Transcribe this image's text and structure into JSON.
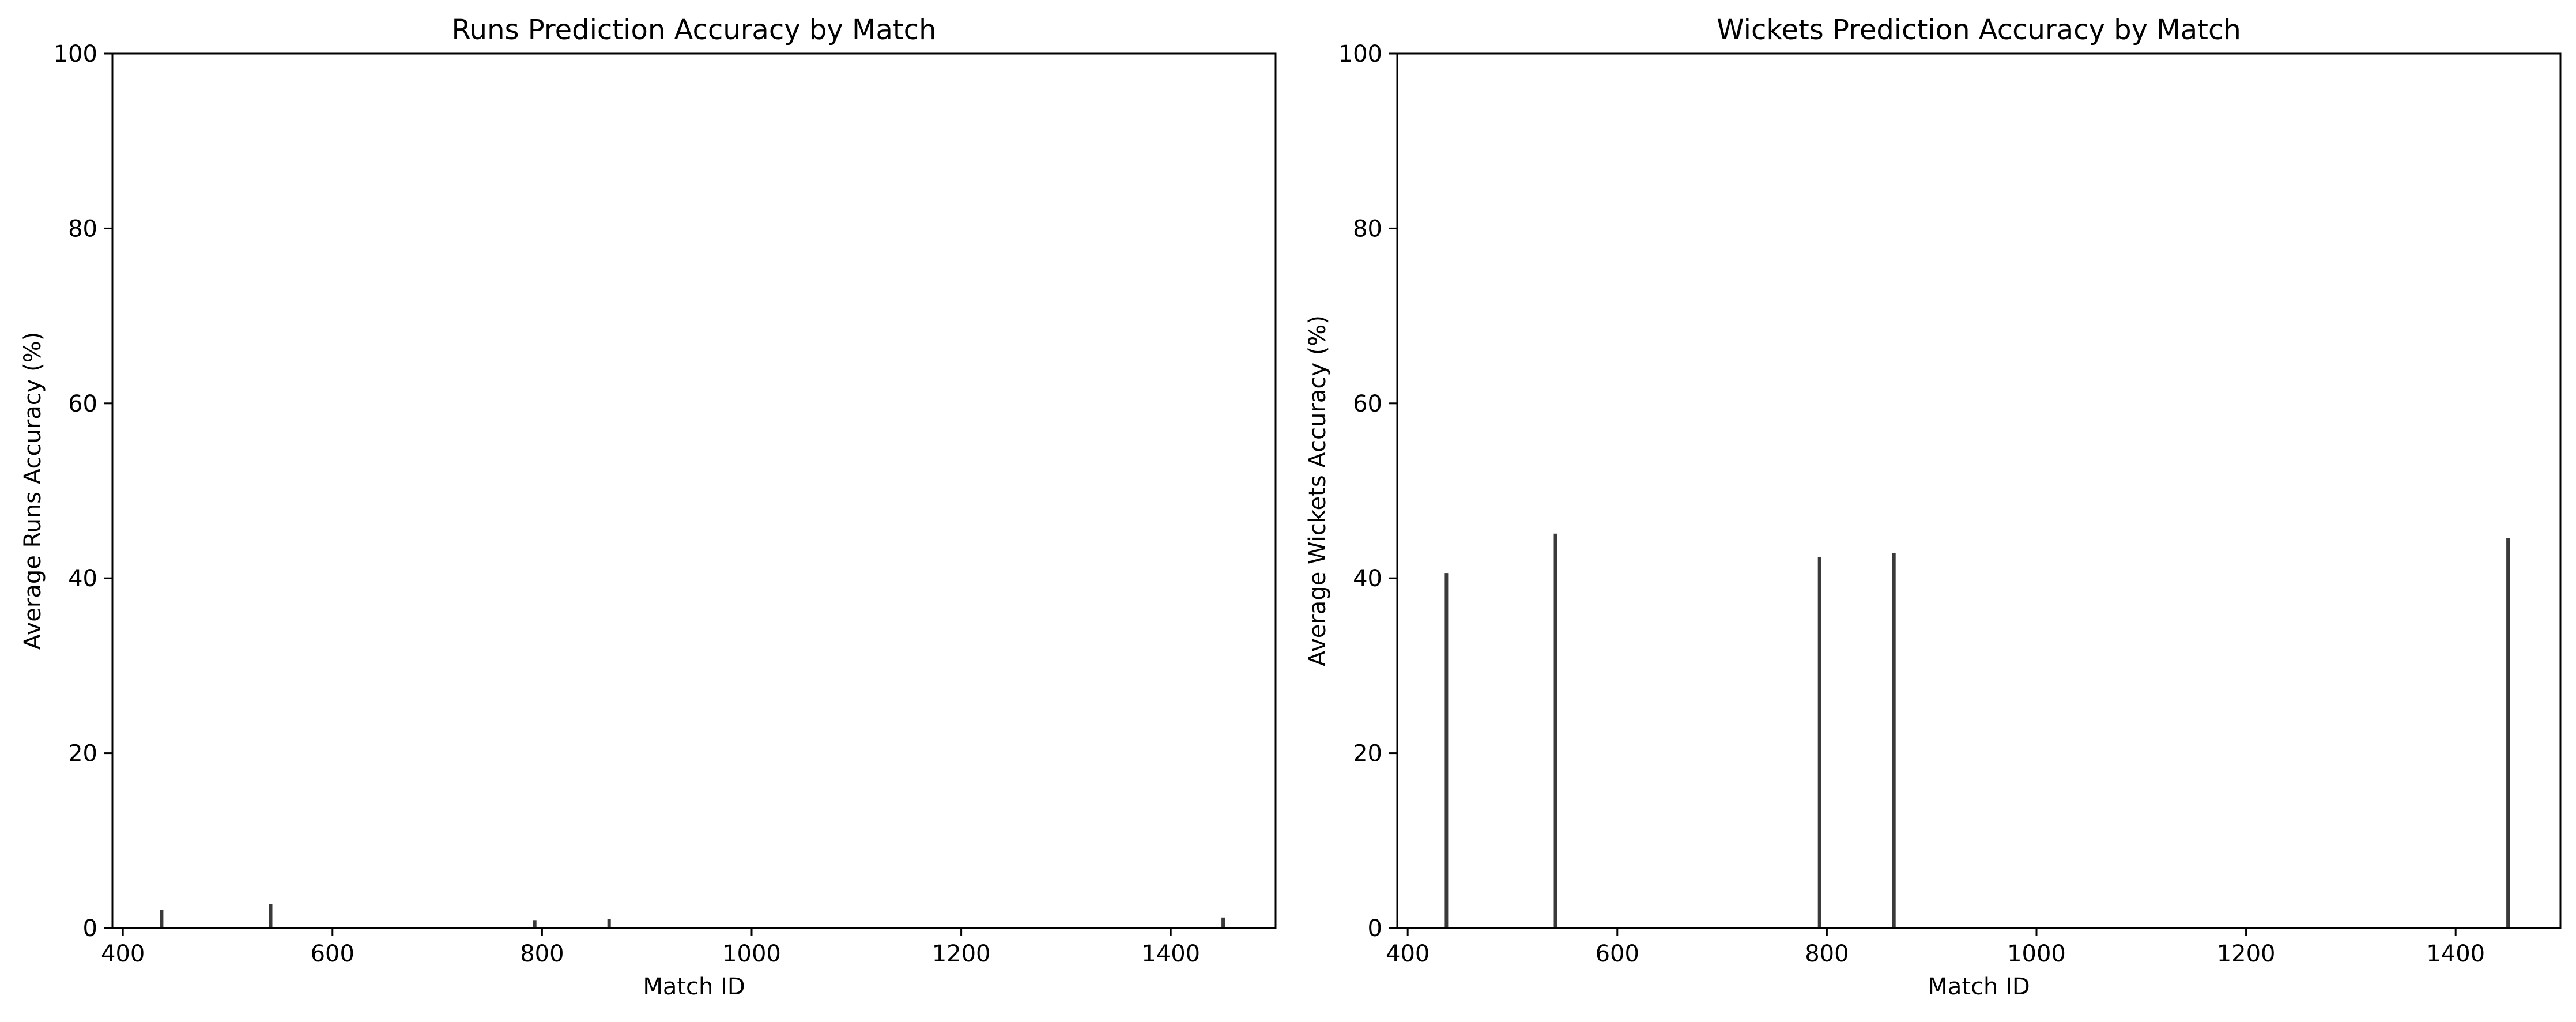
{
  "chart_data": [
    {
      "type": "bar",
      "title": "Runs Prediction Accuracy by Match",
      "xlabel": "Match ID",
      "ylabel": "Average Runs Accuracy (%)",
      "xlim": [
        390,
        1500
      ],
      "ylim": [
        0,
        100
      ],
      "xticks": [
        400,
        600,
        800,
        1000,
        1200,
        1400
      ],
      "yticks": [
        0,
        20,
        40,
        60,
        80,
        100
      ],
      "grid": false,
      "bar_color": "#3a3a3a",
      "x": [
        437,
        541,
        793,
        864,
        1450
      ],
      "values": [
        2.1,
        2.7,
        0.9,
        1.0,
        1.2
      ]
    },
    {
      "type": "bar",
      "title": "Wickets Prediction Accuracy by Match",
      "xlabel": "Match ID",
      "ylabel": "Average Wickets Accuracy (%)",
      "xlim": [
        390,
        1500
      ],
      "ylim": [
        0,
        100
      ],
      "xticks": [
        400,
        600,
        800,
        1000,
        1200,
        1400
      ],
      "yticks": [
        0,
        20,
        40,
        60,
        80,
        100
      ],
      "grid": false,
      "bar_color": "#3a3a3a",
      "x": [
        437,
        541,
        793,
        864,
        1450
      ],
      "values": [
        40.6,
        45.1,
        42.4,
        42.9,
        44.6
      ]
    }
  ]
}
